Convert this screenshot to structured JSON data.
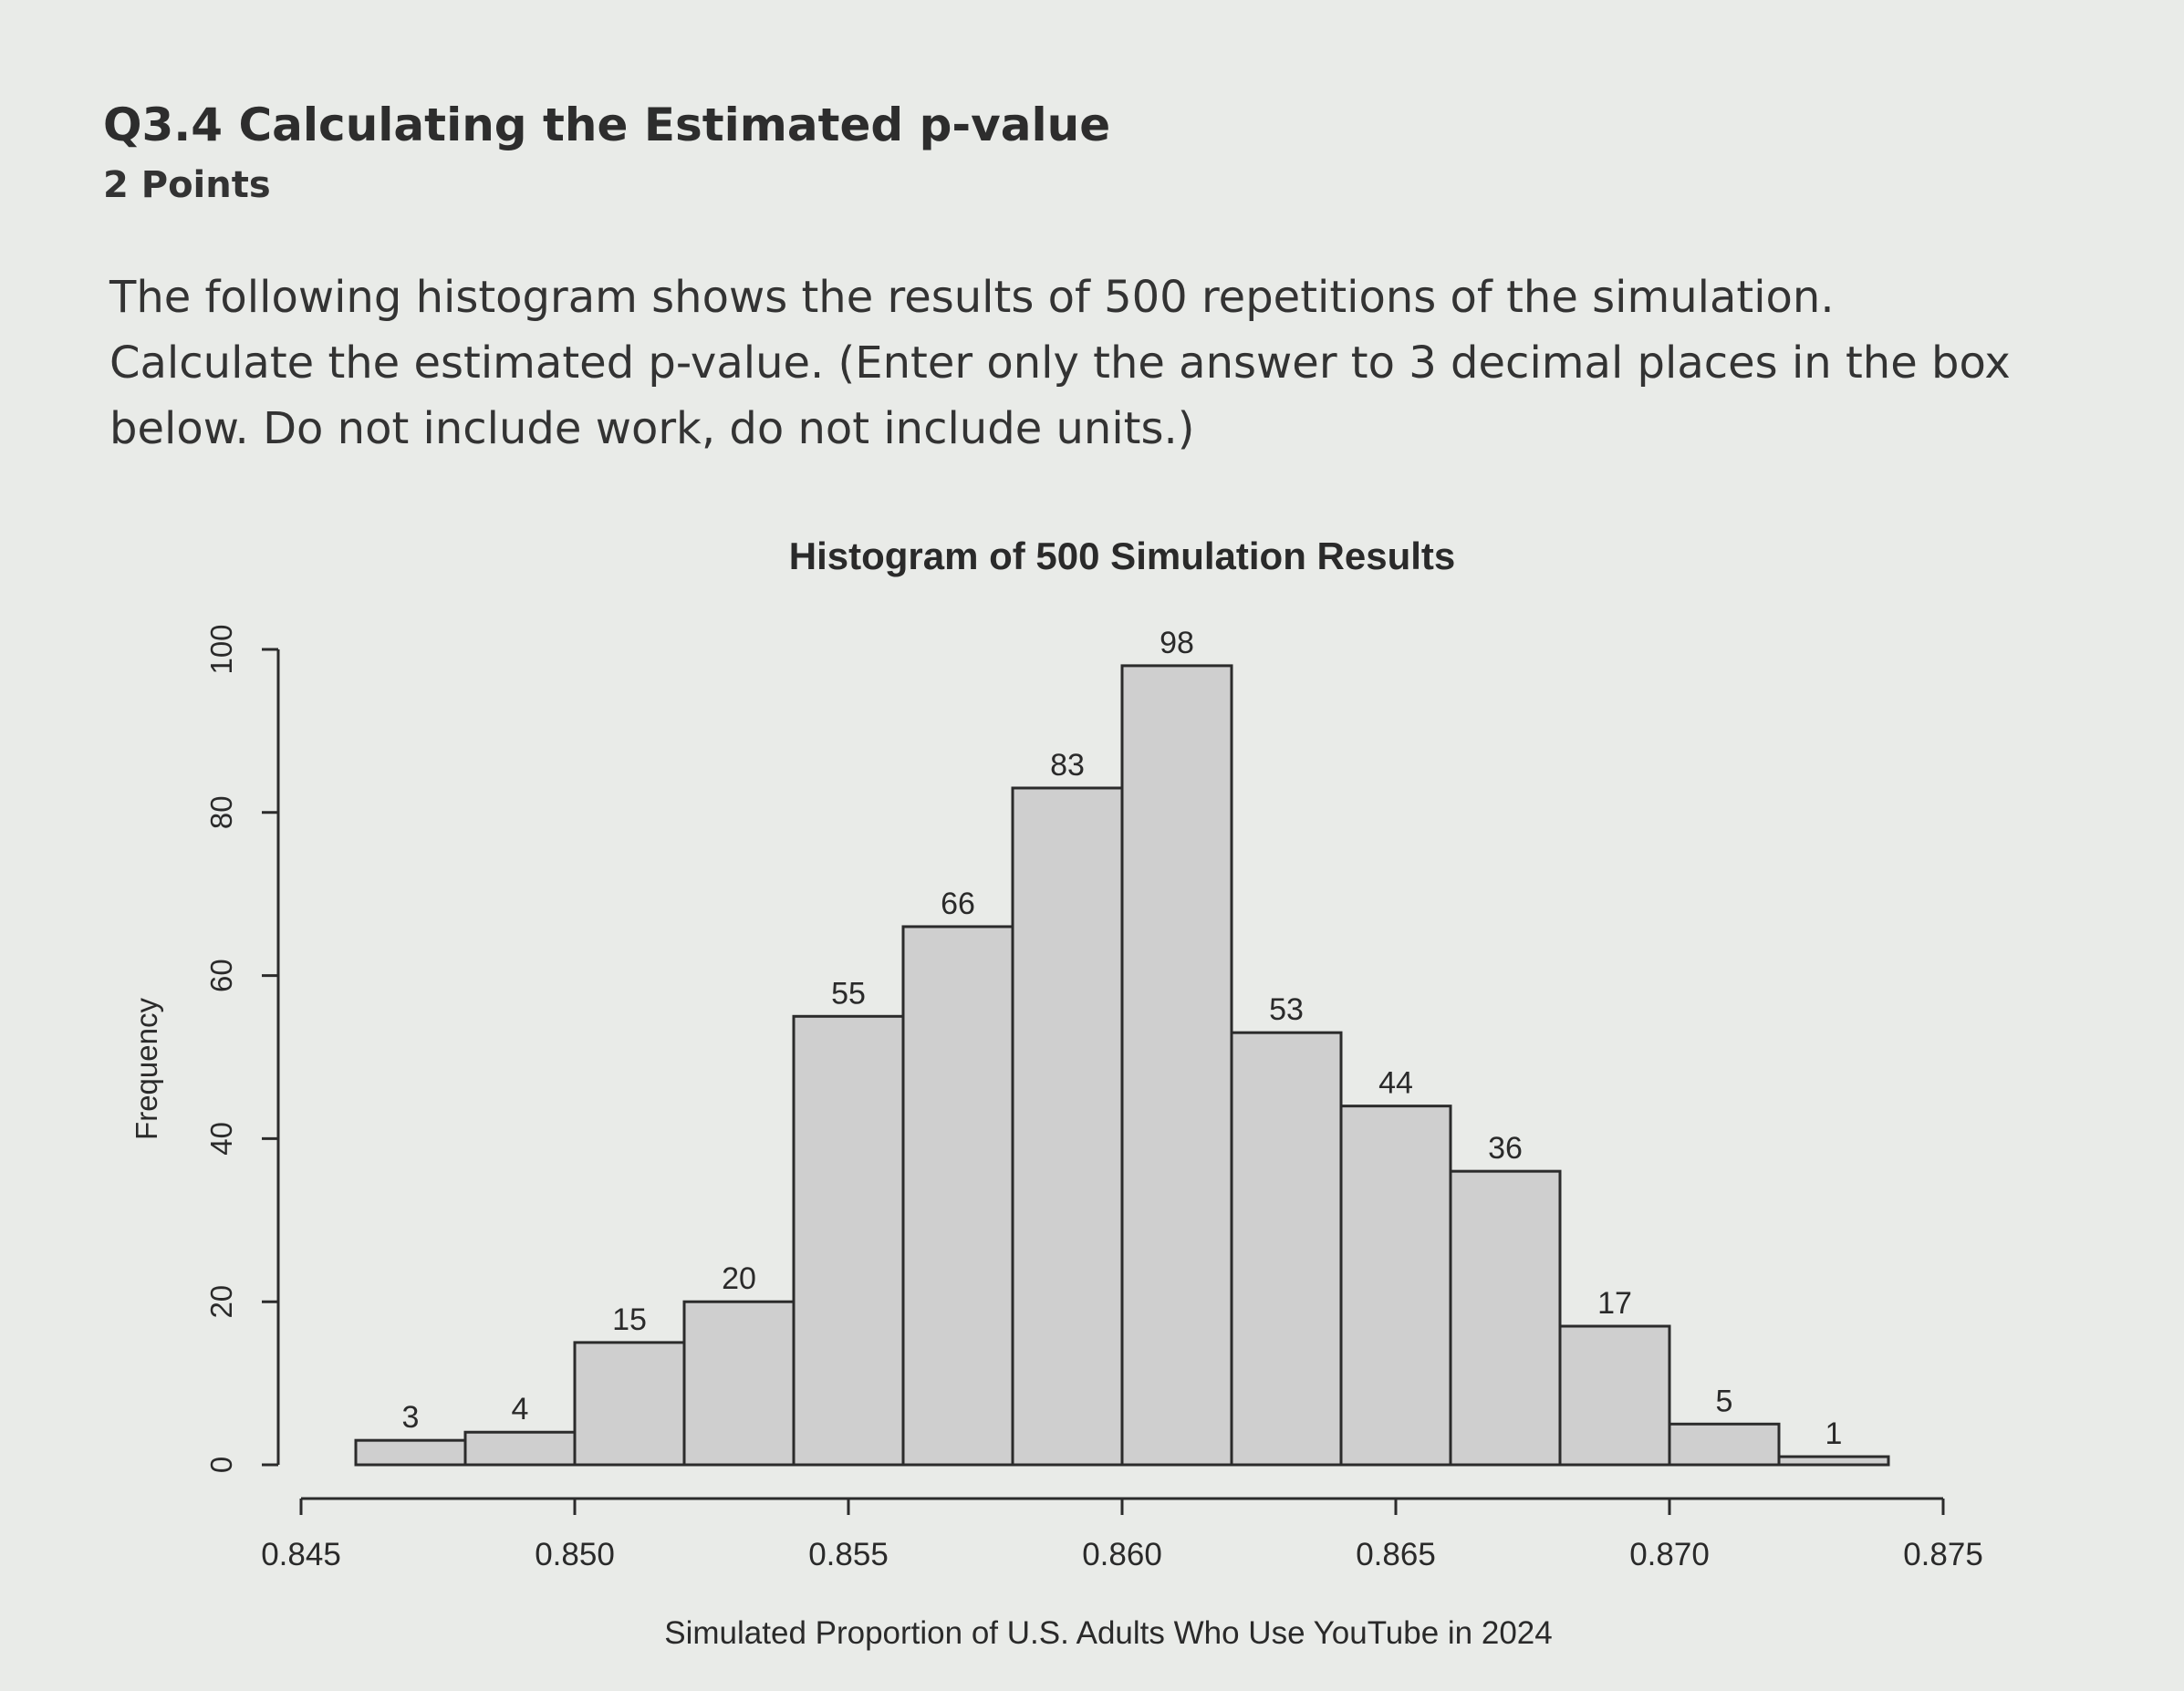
{
  "question": {
    "title": "Q3.4 Calculating the Estimated p-value",
    "points": "2 Points",
    "prompt": "The following histogram shows the results of 500 repetitions of the simulation. Calculate the estimated p-value. (Enter only the answer to 3 decimal places in the box below. Do not include work, do not include units.)"
  },
  "chart_data": {
    "type": "bar",
    "title": "Histogram of 500 Simulation Results",
    "xlabel": "Simulated Proportion of U.S. Adults Who Use YouTube in 2024",
    "ylabel": "Frequency",
    "bin_edges": [
      0.846,
      0.848,
      0.85,
      0.852,
      0.854,
      0.856,
      0.858,
      0.86,
      0.862,
      0.864,
      0.866,
      0.868,
      0.87,
      0.872,
      0.874
    ],
    "values": [
      3,
      4,
      15,
      20,
      55,
      66,
      83,
      98,
      53,
      44,
      36,
      17,
      5,
      1
    ],
    "xlim": [
      0.845,
      0.875
    ],
    "ylim": [
      0,
      100
    ],
    "xticks": [
      "0.845",
      "0.850",
      "0.855",
      "0.860",
      "0.865",
      "0.870",
      "0.875"
    ],
    "yticks": [
      "0",
      "20",
      "40",
      "60",
      "80",
      "100"
    ],
    "bar_color": "#cfcfcf",
    "grid": false
  }
}
